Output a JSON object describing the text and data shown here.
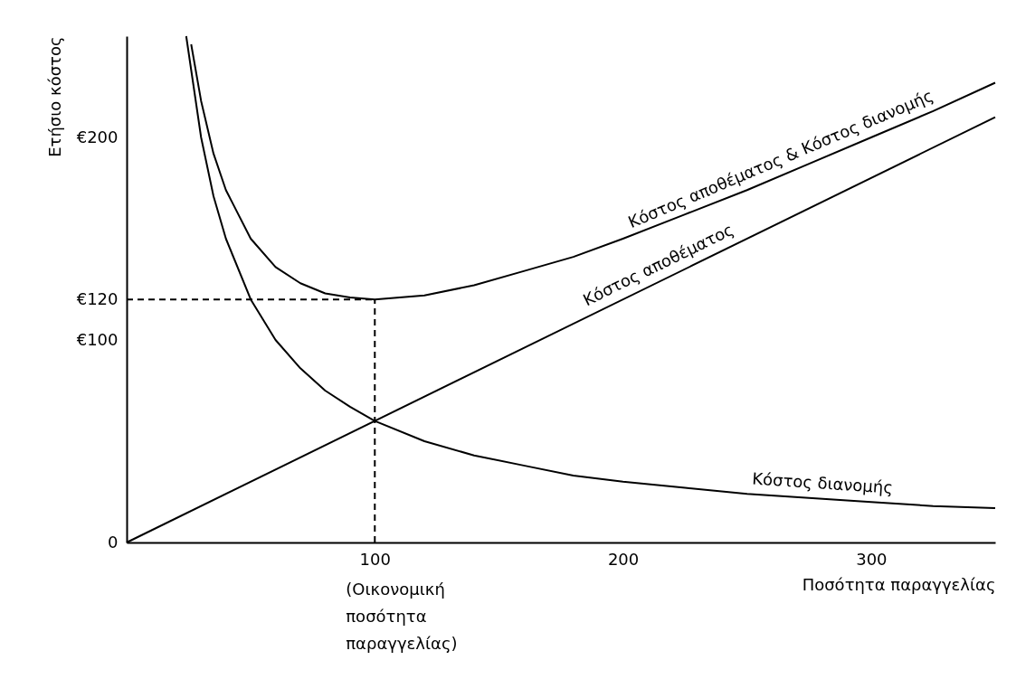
{
  "chart_data": {
    "type": "line",
    "xlabel": "Ποσότητα παραγγελίας",
    "ylabel": "Ετήσιο κόστος",
    "xlim": [
      0,
      350
    ],
    "ylim": [
      0,
      250
    ],
    "xticks": [
      100,
      200,
      300
    ],
    "yticks": [
      0,
      {
        "value": 100,
        "label": "€100"
      },
      {
        "value": 120,
        "label": "€120"
      },
      {
        "value": 200,
        "label": "€200"
      }
    ],
    "grid": false,
    "line_style": "solid",
    "marker": "none",
    "series": [
      {
        "name": "Κόστος διανομής",
        "color": "#000000",
        "x": [
          24,
          30,
          35,
          40,
          50,
          60,
          70,
          80,
          90,
          100,
          120,
          140,
          160,
          180,
          200,
          225,
          250,
          275,
          300,
          325,
          350
        ],
        "values": [
          250,
          200,
          171,
          150,
          120,
          100,
          86,
          75,
          67,
          60,
          50,
          43,
          38,
          33,
          30,
          27,
          24,
          22,
          20,
          18,
          17
        ]
      },
      {
        "name": "Κόστος αποθέματος",
        "color": "#000000",
        "x": [
          0,
          350
        ],
        "values": [
          0,
          210
        ]
      },
      {
        "name": "Κόστος αποθέματος & Κόστος διανομής",
        "color": "#000000",
        "x": [
          26,
          30,
          35,
          40,
          50,
          60,
          70,
          80,
          90,
          100,
          120,
          140,
          160,
          180,
          200,
          225,
          250,
          275,
          300,
          325,
          350
        ],
        "values": [
          246,
          218,
          192,
          174,
          150,
          136,
          128,
          123,
          121,
          120,
          122,
          127,
          134,
          141,
          150,
          162,
          174,
          187,
          200,
          213,
          227
        ]
      }
    ],
    "ref_lines": [
      {
        "axis": "x",
        "value": 100,
        "line_style": "dashed"
      },
      {
        "axis": "y",
        "value": 120,
        "line_style": "dashed"
      }
    ],
    "annotations": [
      {
        "text": "(Οικονομική ποσότητα παραγγελίας)",
        "x": 100,
        "y": 0
      }
    ]
  }
}
